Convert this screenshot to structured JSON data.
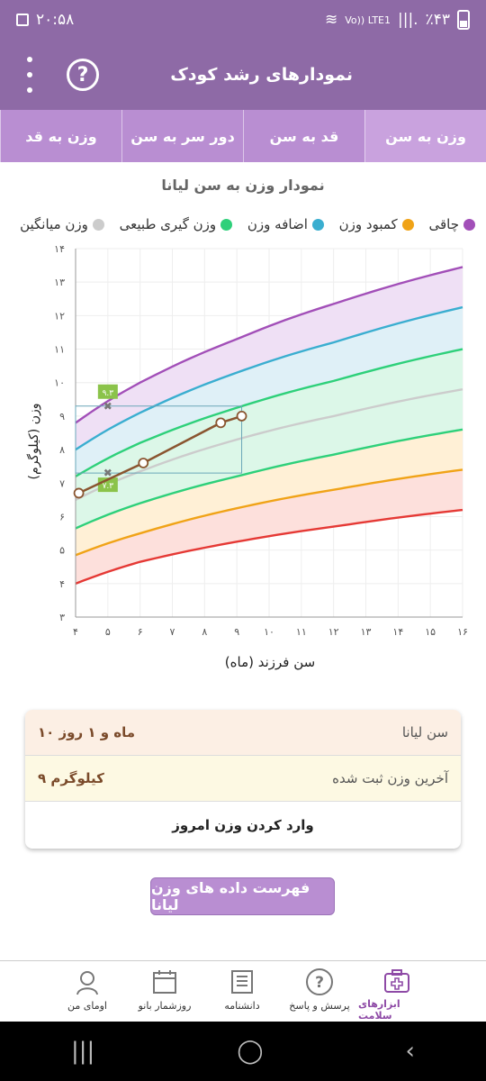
{
  "status_bar": {
    "time": "۲۰:۵۸",
    "battery": "٪۴۳",
    "network": "Vo))\nLTE1"
  },
  "app_bar": {
    "title": "نمودارهای رشد کودک",
    "help_icon": "help-circle-icon",
    "menu_icon": "more-vert-icon"
  },
  "tabs": [
    {
      "label": "وزن به سن",
      "active": true
    },
    {
      "label": "قد به سن",
      "active": false
    },
    {
      "label": "دور سر به سن",
      "active": false
    },
    {
      "label": "وزن به قد",
      "active": false
    }
  ],
  "chart": {
    "title": "نمودار وزن به سن لیانا"
  },
  "legend": [
    {
      "label": "چاقی",
      "color": "#a24fb8"
    },
    {
      "label": "کمبود وزن",
      "color": "#f0a317"
    },
    {
      "label": "اضافه وزن",
      "color": "#3aaed0"
    },
    {
      "label": "وزن گیری طبیعی",
      "color": "#2ed07a"
    },
    {
      "label": "وزن میانگین",
      "color": "#cccccc"
    }
  ],
  "chart_data": {
    "type": "line",
    "xlabel": "سن فرزند (ماه)",
    "ylabel": "وزن (کیلوگرم)",
    "xlim": [
      4,
      16
    ],
    "ylim": [
      3,
      14
    ],
    "x_ticks": [
      "۴",
      "۵",
      "۶",
      "۷",
      "۸",
      "۹",
      "۱۰",
      "۱۱",
      "۱۲",
      "۱۳",
      "۱۴",
      "۱۵",
      "۱۶"
    ],
    "y_ticks": [
      "۳",
      "۴",
      "۵",
      "۶",
      "۷",
      "۸",
      "۹",
      "۱۰",
      "۱۱",
      "۱۲",
      "۱۳",
      "۱۴"
    ],
    "curves": [
      {
        "name": "red",
        "color": "#e53935",
        "points": [
          [
            4,
            4.0
          ],
          [
            6,
            4.65
          ],
          [
            9,
            5.25
          ],
          [
            12,
            5.7
          ],
          [
            16,
            6.2
          ]
        ]
      },
      {
        "name": "orange",
        "color": "#f0a317",
        "points": [
          [
            4,
            4.85
          ],
          [
            6,
            5.5
          ],
          [
            9,
            6.25
          ],
          [
            12,
            6.8
          ],
          [
            16,
            7.4
          ]
        ]
      },
      {
        "name": "green-low",
        "color": "#2ed07a",
        "points": [
          [
            4,
            5.65
          ],
          [
            6,
            6.4
          ],
          [
            9,
            7.2
          ],
          [
            12,
            7.85
          ],
          [
            16,
            8.6
          ]
        ]
      },
      {
        "name": "median",
        "color": "#cccccc",
        "points": [
          [
            4,
            6.5
          ],
          [
            6,
            7.35
          ],
          [
            9,
            8.3
          ],
          [
            12,
            9.0
          ],
          [
            16,
            9.8
          ]
        ]
      },
      {
        "name": "green-high",
        "color": "#2ed07a",
        "points": [
          [
            4,
            7.2
          ],
          [
            6,
            8.2
          ],
          [
            9,
            9.25
          ],
          [
            12,
            10.05
          ],
          [
            16,
            11.0
          ]
        ]
      },
      {
        "name": "blue",
        "color": "#3aaed0",
        "points": [
          [
            4,
            8.0
          ],
          [
            6,
            9.1
          ],
          [
            9,
            10.3
          ],
          [
            12,
            11.2
          ],
          [
            16,
            12.25
          ]
        ]
      },
      {
        "name": "purple",
        "color": "#a24fb8",
        "points": [
          [
            4,
            8.8
          ],
          [
            6,
            10.0
          ],
          [
            9,
            11.3
          ],
          [
            12,
            12.35
          ],
          [
            16,
            13.45
          ]
        ]
      }
    ],
    "bands": [
      {
        "from": "red",
        "to": "orange",
        "color": "#fde0dc"
      },
      {
        "from": "orange",
        "to": "green-low",
        "color": "#fff0d6"
      },
      {
        "from": "green-low",
        "to": "green-high",
        "color": "#dcf7e8"
      },
      {
        "from": "green-high",
        "to": "blue",
        "color": "#dff0f7"
      },
      {
        "from": "blue",
        "to": "purple",
        "color": "#efe0f5"
      }
    ],
    "child_series": {
      "color": "#8a5530",
      "points": [
        [
          4.1,
          6.7
        ],
        [
          6.1,
          7.6
        ],
        [
          8.5,
          8.8
        ],
        [
          9.15,
          9.0
        ]
      ]
    },
    "markers": [
      {
        "x": 5,
        "y": 9.3,
        "label": "۹.۳"
      },
      {
        "x": 5,
        "y": 7.3,
        "label": "۷.۳"
      }
    ]
  },
  "summary": {
    "age_label": "سن لیانا",
    "age_value": "۱۰ ماه و ۱ روز",
    "weight_label": "آخرین وزن ثبت شده",
    "weight_value": "۹ کیلوگرم",
    "enter_button": "وارد کردن وزن امروز"
  },
  "list_button": "فهرست داده های وزن لیانا",
  "bottom_nav": [
    {
      "label": "ابزارهای سلامت",
      "icon": "first-aid-kit-icon",
      "active": true
    },
    {
      "label": "پرسش و پاسخ",
      "icon": "question-icon",
      "active": false
    },
    {
      "label": "دانشنامه",
      "icon": "encyclopedia-icon",
      "active": false
    },
    {
      "label": "روزشمار بانو",
      "icon": "calendar-icon",
      "active": false
    },
    {
      "label": "اومای من",
      "icon": "user-icon",
      "active": false
    }
  ]
}
